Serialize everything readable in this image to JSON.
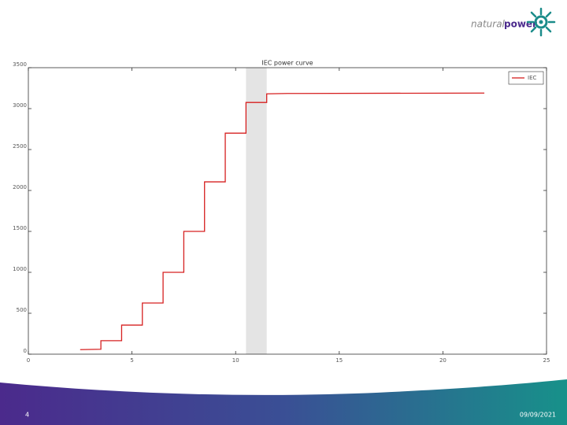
{
  "slide": {
    "logo_word_1": "natural",
    "logo_word_2": "power",
    "page_number": "4",
    "date": "09/09/2021"
  },
  "chart_data": {
    "type": "line",
    "title": "IEC power curve",
    "series": [
      {
        "name": "IEC",
        "color": "#d62020",
        "x": [
          2.5,
          3.5,
          3.5,
          4.5,
          4.5,
          5.5,
          5.5,
          6.5,
          6.5,
          7.5,
          7.5,
          8.5,
          8.5,
          9.5,
          9.5,
          10.5,
          10.5,
          11.5,
          11.5,
          12.5,
          22
        ],
        "values": [
          55,
          60,
          165,
          165,
          355,
          355,
          625,
          625,
          1000,
          1000,
          1500,
          1500,
          2105,
          2105,
          2700,
          2700,
          3075,
          3075,
          3180,
          3185,
          3190
        ]
      }
    ],
    "highlight_x": [
      10.5,
      11.5
    ],
    "xlim": [
      0,
      25
    ],
    "xticks": [
      0,
      5,
      10,
      15,
      20,
      25
    ],
    "ylim": [
      0,
      3500
    ],
    "yticks": [
      0,
      500,
      1000,
      1500,
      2000,
      2500,
      3000,
      3500
    ],
    "grid": false,
    "legend": "upper right"
  }
}
